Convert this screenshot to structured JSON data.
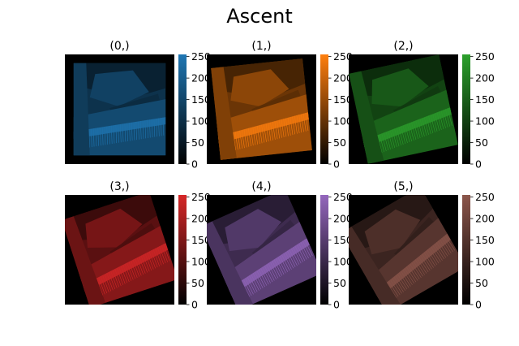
{
  "figure": {
    "title": "Ascent"
  },
  "chart_data": [
    {
      "type": "heatmap",
      "title": "(0,)",
      "colormap": "black-to-blue",
      "color": "#1f77b4",
      "rotation_deg": 0,
      "clim": [
        0,
        255
      ],
      "colorbar_ticks": [
        "0",
        "50",
        "100",
        "150",
        "200",
        "250"
      ]
    },
    {
      "type": "heatmap",
      "title": "(1,)",
      "colormap": "black-to-orange",
      "color": "#ff7f0e",
      "rotation_deg": -6,
      "clim": [
        0,
        255
      ],
      "colorbar_ticks": [
        "0",
        "50",
        "100",
        "150",
        "200",
        "250"
      ]
    },
    {
      "type": "heatmap",
      "title": "(2,)",
      "colormap": "black-to-green",
      "color": "#2ca02c",
      "rotation_deg": -12,
      "clim": [
        0,
        255
      ],
      "colorbar_ticks": [
        "0",
        "50",
        "100",
        "150",
        "200",
        "250"
      ]
    },
    {
      "type": "heatmap",
      "title": "(3,)",
      "colormap": "black-to-red",
      "color": "#d62728",
      "rotation_deg": -18,
      "clim": [
        0,
        255
      ],
      "colorbar_ticks": [
        "0",
        "50",
        "100",
        "150",
        "200",
        "250"
      ]
    },
    {
      "type": "heatmap",
      "title": "(4,)",
      "colormap": "black-to-purple",
      "color": "#9467bd",
      "rotation_deg": -24,
      "clim": [
        0,
        255
      ],
      "colorbar_ticks": [
        "0",
        "50",
        "100",
        "150",
        "200",
        "250"
      ]
    },
    {
      "type": "heatmap",
      "title": "(5,)",
      "colormap": "black-to-brown",
      "color": "#8c564b",
      "rotation_deg": -30,
      "clim": [
        0,
        255
      ],
      "colorbar_ticks": [
        "0",
        "50",
        "100",
        "150",
        "200",
        "250"
      ]
    }
  ]
}
